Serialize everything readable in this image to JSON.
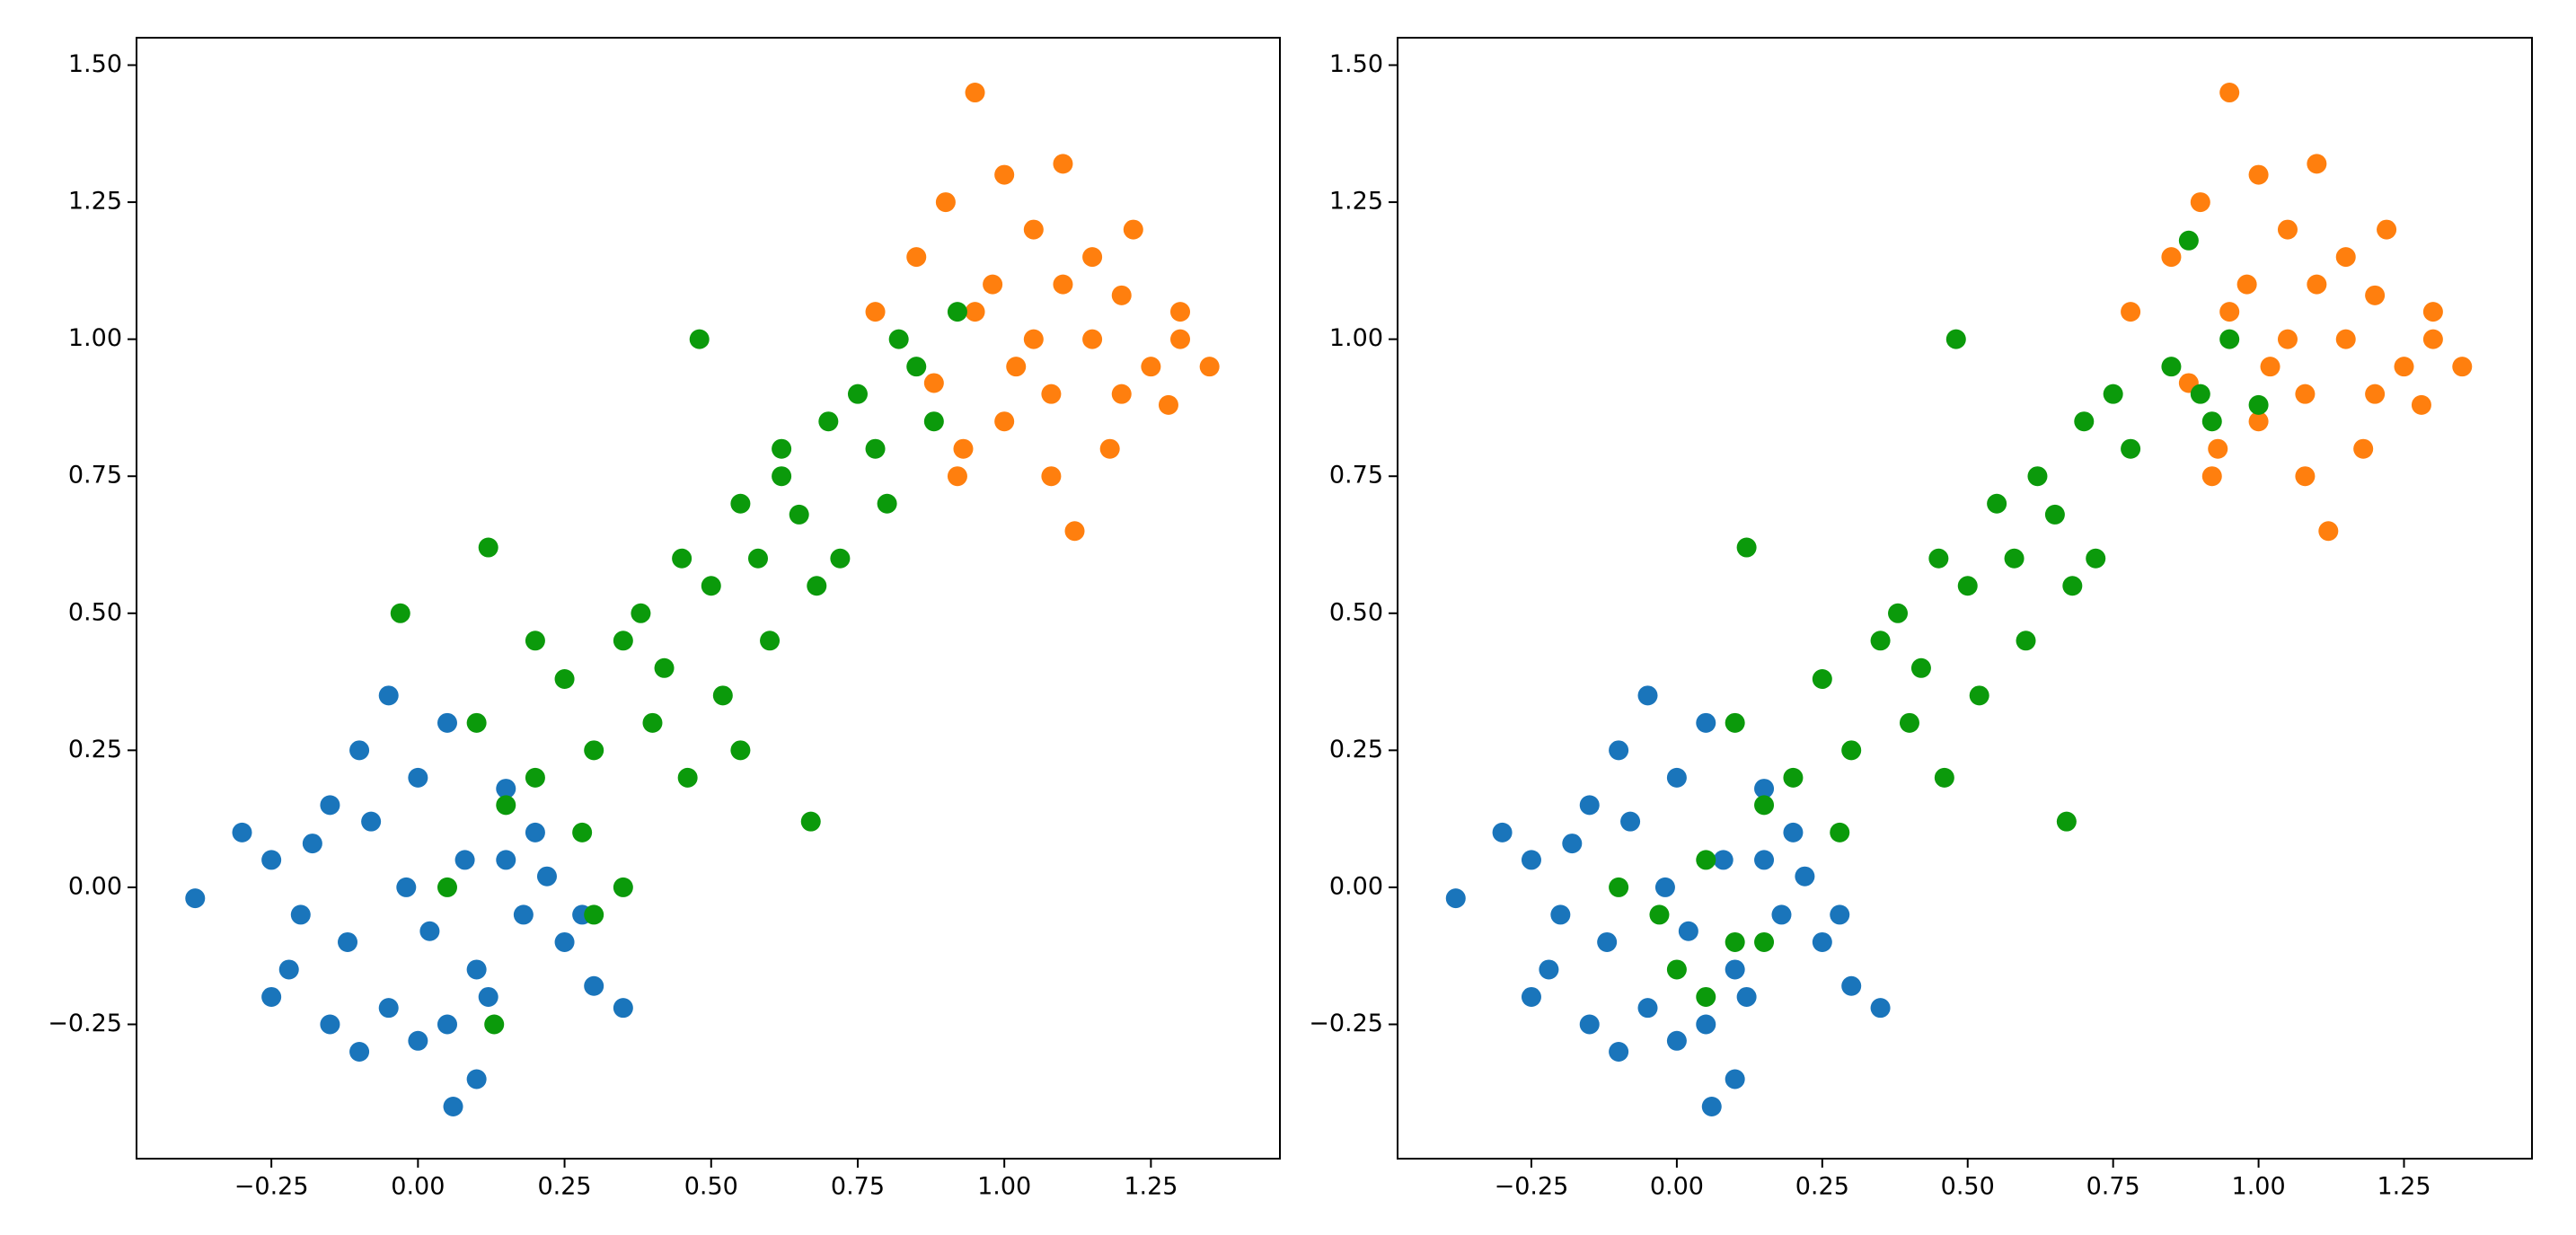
{
  "chart_data": [
    {
      "type": "scatter",
      "xlim": [
        -0.48,
        1.47
      ],
      "ylim": [
        -0.495,
        1.55
      ],
      "xticks": [
        {
          "value": -0.25,
          "label": "−0.25"
        },
        {
          "value": 0,
          "label": "0.00"
        },
        {
          "value": 0.25,
          "label": "0.25"
        },
        {
          "value": 0.5,
          "label": "0.50"
        },
        {
          "value": 0.75,
          "label": "0.75"
        },
        {
          "value": 1,
          "label": "1.00"
        },
        {
          "value": 1.25,
          "label": "1.25"
        }
      ],
      "yticks": [
        {
          "value": -0.25,
          "label": "−0.25"
        },
        {
          "value": 0,
          "label": "0.00"
        },
        {
          "value": 0.25,
          "label": "0.25"
        },
        {
          "value": 0.5,
          "label": "0.50"
        },
        {
          "value": 0.75,
          "label": "0.75"
        },
        {
          "value": 1,
          "label": "1.00"
        },
        {
          "value": 1.25,
          "label": "1.25"
        },
        {
          "value": 1.5,
          "label": "1.50"
        }
      ],
      "series": [
        {
          "color": "#1a75bb",
          "x": [
            -0.38,
            -0.3,
            -0.25,
            -0.2,
            -0.15,
            -0.1,
            -0.05,
            0,
            0.05,
            0.1,
            0.15,
            0.2,
            0.25,
            0.3,
            0.35,
            -0.22,
            -0.12,
            -0.02,
            0.08,
            0.18,
            -0.18,
            -0.08,
            0.02,
            0.12,
            0.22,
            -0.1,
            0,
            0.1,
            0.06,
            -0.05,
            0.15,
            -0.25,
            0.28,
            -0.15,
            0.05
          ],
          "y": [
            -0.02,
            0.1,
            0.05,
            -0.05,
            0.15,
            0.25,
            0.35,
            0.2,
            -0.25,
            -0.15,
            0.05,
            0.1,
            -0.1,
            -0.18,
            -0.22,
            -0.15,
            -0.1,
            0.0,
            0.05,
            -0.05,
            0.08,
            0.12,
            -0.08,
            -0.2,
            0.02,
            -0.3,
            -0.28,
            -0.35,
            -0.4,
            -0.22,
            0.18,
            -0.2,
            -0.05,
            -0.25,
            0.3
          ]
        },
        {
          "color": "#ff7f0e",
          "x": [
            0.78,
            0.85,
            0.9,
            0.95,
            1.0,
            1.05,
            1.1,
            1.15,
            1.2,
            1.25,
            1.3,
            1.35,
            0.93,
            1.0,
            1.08,
            1.12,
            1.18,
            0.98,
            1.05,
            1.22,
            0.88,
            1.28,
            1.1,
            0.95,
            1.15,
            1.02,
            1.08,
            1.2,
            0.92,
            1.3
          ],
          "y": [
            1.05,
            1.15,
            1.25,
            1.45,
            1.3,
            1.2,
            1.1,
            1.0,
            0.9,
            0.95,
            1.05,
            0.95,
            0.8,
            0.85,
            0.75,
            0.65,
            0.8,
            1.1,
            1.0,
            1.2,
            0.92,
            0.88,
            1.32,
            1.05,
            1.15,
            0.95,
            0.9,
            1.08,
            0.75,
            1.0
          ]
        },
        {
          "color": "#0b9a0b",
          "x": [
            -0.03,
            0.05,
            0.1,
            0.12,
            0.15,
            0.2,
            0.25,
            0.28,
            0.3,
            0.35,
            0.38,
            0.4,
            0.42,
            0.45,
            0.48,
            0.5,
            0.52,
            0.55,
            0.58,
            0.6,
            0.62,
            0.65,
            0.68,
            0.7,
            0.72,
            0.75,
            0.78,
            0.8,
            0.82,
            0.85,
            0.88,
            0.92,
            0.46,
            0.2,
            0.67,
            0.35,
            0.55,
            0.3,
            0.62,
            0.13
          ],
          "y": [
            0.5,
            0.0,
            0.3,
            0.62,
            0.15,
            0.2,
            0.38,
            0.1,
            0.25,
            0.45,
            0.5,
            0.3,
            0.4,
            0.6,
            1.0,
            0.55,
            0.35,
            0.7,
            0.6,
            0.45,
            0.75,
            0.68,
            0.55,
            0.85,
            0.6,
            0.9,
            0.8,
            0.7,
            1.0,
            0.95,
            0.85,
            1.05,
            0.2,
            0.45,
            0.12,
            0.0,
            0.25,
            -0.05,
            0.8,
            -0.25
          ]
        }
      ]
    },
    {
      "type": "scatter",
      "xlim": [
        -0.48,
        1.47
      ],
      "ylim": [
        -0.495,
        1.55
      ],
      "xticks": [
        {
          "value": -0.25,
          "label": "−0.25"
        },
        {
          "value": 0,
          "label": "0.00"
        },
        {
          "value": 0.25,
          "label": "0.25"
        },
        {
          "value": 0.5,
          "label": "0.50"
        },
        {
          "value": 0.75,
          "label": "0.75"
        },
        {
          "value": 1,
          "label": "1.00"
        },
        {
          "value": 1.25,
          "label": "1.25"
        }
      ],
      "yticks": [
        {
          "value": -0.25,
          "label": "−0.25"
        },
        {
          "value": 0,
          "label": "0.00"
        },
        {
          "value": 0.25,
          "label": "0.25"
        },
        {
          "value": 0.5,
          "label": "0.50"
        },
        {
          "value": 0.75,
          "label": "0.75"
        },
        {
          "value": 1,
          "label": "1.00"
        },
        {
          "value": 1.25,
          "label": "1.25"
        },
        {
          "value": 1.5,
          "label": "1.50"
        }
      ],
      "series": [
        {
          "color": "#1a75bb",
          "x": [
            -0.38,
            -0.3,
            -0.25,
            -0.2,
            -0.15,
            -0.1,
            -0.05,
            0,
            0.05,
            0.1,
            0.15,
            0.2,
            0.25,
            0.3,
            0.35,
            -0.22,
            -0.12,
            -0.02,
            0.08,
            0.18,
            -0.18,
            -0.08,
            0.02,
            0.12,
            0.22,
            -0.1,
            0,
            0.1,
            0.06,
            -0.05,
            0.15,
            -0.25,
            0.28,
            -0.15,
            0.05
          ],
          "y": [
            -0.02,
            0.1,
            0.05,
            -0.05,
            0.15,
            0.25,
            0.35,
            0.2,
            -0.25,
            -0.15,
            0.05,
            0.1,
            -0.1,
            -0.18,
            -0.22,
            -0.15,
            -0.1,
            0.0,
            0.05,
            -0.05,
            0.08,
            0.12,
            -0.08,
            -0.2,
            0.02,
            -0.3,
            -0.28,
            -0.35,
            -0.4,
            -0.22,
            0.18,
            -0.2,
            -0.05,
            -0.25,
            0.3
          ]
        },
        {
          "color": "#ff7f0e",
          "x": [
            0.78,
            0.85,
            0.9,
            0.95,
            1.0,
            1.05,
            1.1,
            1.15,
            1.2,
            1.25,
            1.3,
            1.35,
            0.93,
            1.0,
            1.08,
            1.12,
            1.18,
            0.98,
            1.05,
            1.22,
            0.88,
            1.28,
            1.1,
            0.95,
            1.15,
            1.02,
            1.08,
            1.2,
            0.92,
            1.3
          ],
          "y": [
            1.05,
            1.15,
            1.25,
            1.45,
            1.3,
            1.2,
            1.1,
            1.0,
            0.9,
            0.95,
            1.05,
            0.95,
            0.8,
            0.85,
            0.75,
            0.65,
            0.8,
            1.1,
            1.0,
            1.2,
            0.92,
            0.88,
            1.32,
            1.05,
            1.15,
            0.95,
            0.9,
            1.08,
            0.75,
            1.0
          ]
        },
        {
          "color": "#0b9a0b",
          "x": [
            -0.03,
            0.05,
            0.1,
            0.12,
            0.15,
            0.2,
            0.25,
            0.28,
            0.3,
            0.35,
            0.38,
            0.4,
            0.42,
            0.45,
            0.48,
            0.5,
            0.52,
            0.55,
            0.58,
            0.6,
            0.62,
            0.65,
            0.68,
            0.7,
            0.72,
            0.75,
            0.78,
            0.85,
            0.9,
            0.95,
            0.92,
            0.88,
            0.46,
            0.0,
            0.67,
            -0.1,
            0.05,
            0.15,
            1.0,
            0.1
          ],
          "y": [
            -0.05,
            0.05,
            0.3,
            0.62,
            0.15,
            0.2,
            0.38,
            0.1,
            0.25,
            0.45,
            0.5,
            0.3,
            0.4,
            0.6,
            1.0,
            0.55,
            0.35,
            0.7,
            0.6,
            0.45,
            0.75,
            0.68,
            0.55,
            0.85,
            0.6,
            0.9,
            0.8,
            0.95,
            0.9,
            1.0,
            0.85,
            1.18,
            0.2,
            -0.15,
            0.12,
            0.0,
            -0.2,
            -0.1,
            0.88,
            -0.1
          ]
        }
      ]
    }
  ]
}
